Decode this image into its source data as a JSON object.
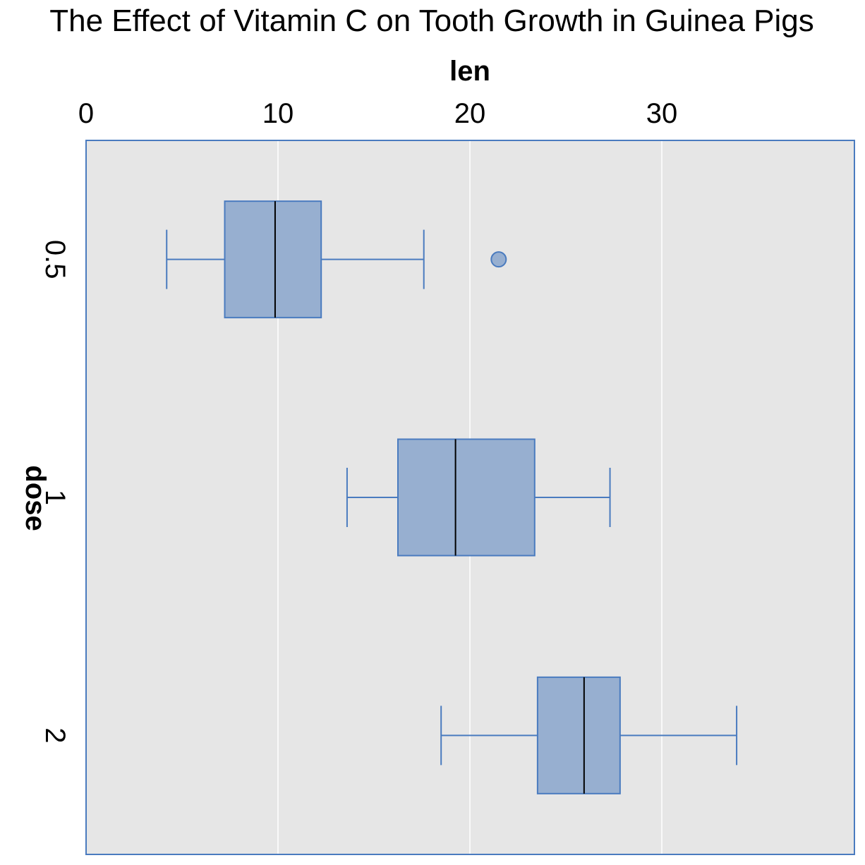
{
  "chart_data": {
    "type": "boxplot",
    "title": "The Effect of Vitamin C on Tooth Growth in Guinea Pigs",
    "xlabel": "len",
    "ylabel": "dose",
    "xlim": [
      0,
      40
    ],
    "x_ticks": [
      0,
      10,
      20,
      30
    ],
    "x_tick_labels": [
      "0",
      "10",
      "20",
      "30"
    ],
    "grid": true,
    "orientation": "horizontal",
    "x_axis_position": "top",
    "categories": [
      "0.5",
      "1",
      "2"
    ],
    "boxes": [
      {
        "category": "0.5",
        "whisker_low": 4.2,
        "q1": 7.225,
        "median": 9.85,
        "q3": 12.25,
        "whisker_high": 17.6,
        "outliers": [
          21.5
        ]
      },
      {
        "category": "1",
        "whisker_low": 13.6,
        "q1": 16.25,
        "median": 19.25,
        "q3": 23.375,
        "whisker_high": 27.3,
        "outliers": []
      },
      {
        "category": "2",
        "whisker_low": 18.5,
        "q1": 23.525,
        "median": 25.95,
        "q3": 27.825,
        "whisker_high": 33.9,
        "outliers": []
      }
    ],
    "colors": {
      "panel_background": "#e6e6e6",
      "panel_border": "#4a7bbf",
      "gridline": "#ffffff",
      "box_fill": "#97afd0",
      "box_stroke": "#4a7bbf",
      "median_line": "#000000"
    }
  }
}
